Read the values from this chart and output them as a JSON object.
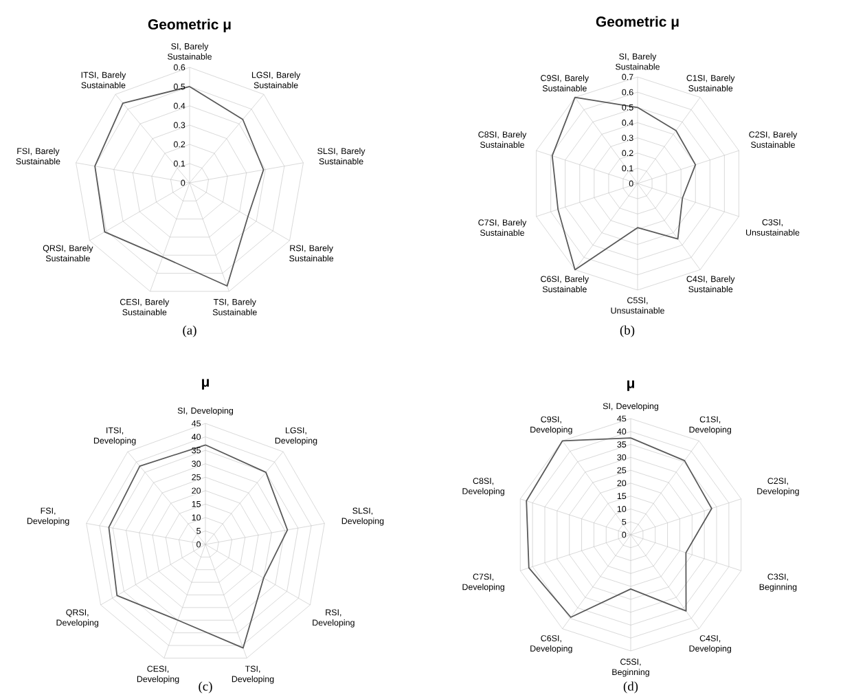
{
  "chart_data": [
    {
      "type": "radar",
      "title": "Geometric μ",
      "categories": [
        "SI, Barely Sustainable",
        "LGSI, Barely Sustainable",
        "SLSI, Barely Sustainable",
        "RSI, Barely Sustainable",
        "TSI, Barely Sustainable",
        "CESI, Barely Sustainable",
        "QRSI, Barely Sustainable",
        "FSI, Barely Sustainable",
        "ITSI, Barely Sustainable"
      ],
      "series": [
        {
          "color": "#595959",
          "values": [
            0.5,
            0.43,
            0.39,
            0.35,
            0.57,
            0.41,
            0.51,
            0.5,
            0.54
          ]
        }
      ],
      "ylim": [
        0,
        0.6
      ],
      "yticks": [
        0,
        0.1,
        0.2,
        0.3,
        0.4,
        0.5,
        0.6
      ],
      "grid": true,
      "annotations": [
        "(a)"
      ]
    },
    {
      "type": "radar",
      "title": "Geometric μ",
      "categories": [
        "SI, Barely Sustainable",
        "C1SI, Barely Sustainable",
        "C2SI, Barely Sustainable",
        "C3SI, Unsustainable",
        "C4SI, Barely Sustainable",
        "C5SI, Unsustainable",
        "C6SI, Barely Sustainable",
        "C7SI, Barely Sustainable",
        "C8SI, Barely Sustainable",
        "C9SI, Barely Sustainable"
      ],
      "series": [
        {
          "color": "#595959",
          "values": [
            0.5,
            0.43,
            0.4,
            0.31,
            0.45,
            0.29,
            0.7,
            0.55,
            0.59,
            0.7
          ]
        }
      ],
      "ylim": [
        0,
        0.7
      ],
      "yticks": [
        0,
        0.1,
        0.2,
        0.3,
        0.4,
        0.5,
        0.6,
        0.7
      ],
      "grid": true,
      "annotations": [
        "(b)"
      ]
    },
    {
      "type": "radar",
      "title": "μ",
      "categories": [
        "SI, Developing",
        "LGSI, Developing",
        "SLSI, Developing",
        "RSI, Developing",
        "TSI, Developing",
        "CESI, Developing",
        "QRSI, Developing",
        "FSI, Developing",
        "ITSI, Developing"
      ],
      "series": [
        {
          "color": "#595959",
          "values": [
            37,
            35,
            31,
            25,
            41,
            30,
            38,
            36.5,
            38
          ]
        }
      ],
      "ylim": [
        0,
        45
      ],
      "yticks": [
        0,
        5,
        10,
        15,
        20,
        25,
        30,
        35,
        40,
        45
      ],
      "grid": true,
      "annotations": [
        "(c)"
      ]
    },
    {
      "type": "radar",
      "title": "μ",
      "categories": [
        "SI, Developing",
        "C1SI, Developing",
        "C2SI, Developing",
        "C3SI, Beginning",
        "C4SI, Developing",
        "C5SI, Beginning",
        "C6SI, Developing",
        "C7SI, Developing",
        "C8SI, Developing",
        "C9SI, Developing"
      ],
      "series": [
        {
          "color": "#595959",
          "values": [
            37.5,
            35.5,
            33,
            22.5,
            36.5,
            21,
            39.5,
            41.5,
            42.5,
            45
          ]
        }
      ],
      "ylim": [
        0,
        45
      ],
      "yticks": [
        0,
        5,
        10,
        15,
        20,
        25,
        30,
        35,
        40,
        45
      ],
      "grid": true,
      "annotations": [
        "(d)"
      ]
    }
  ]
}
